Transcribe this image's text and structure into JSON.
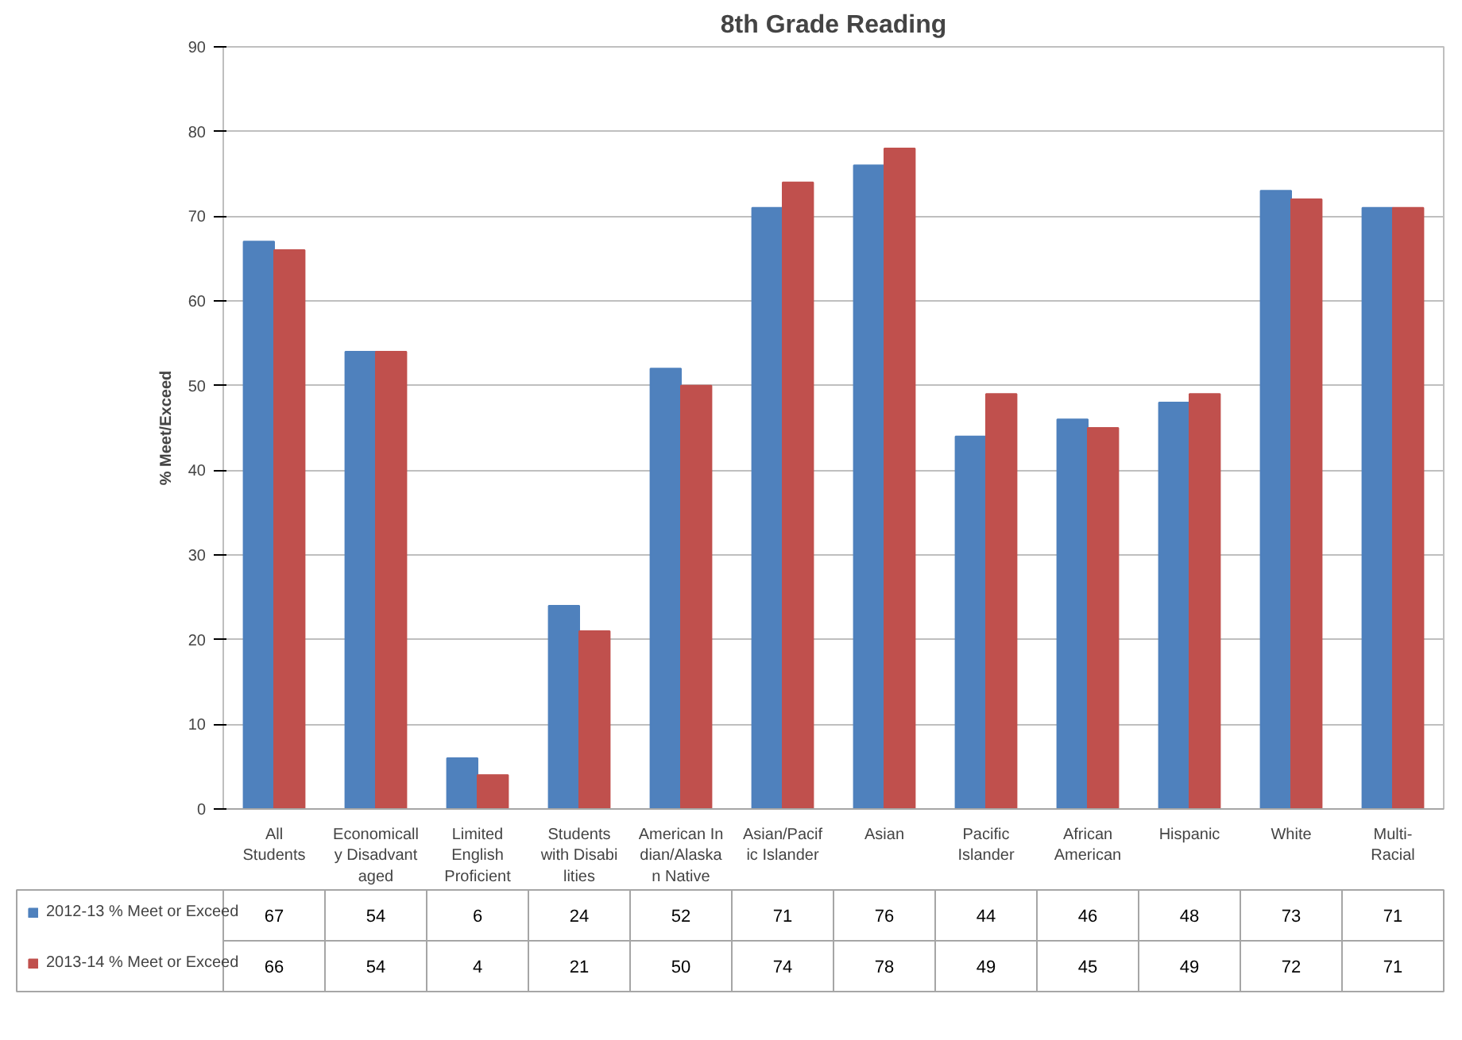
{
  "chart_data": {
    "type": "bar",
    "title": "8th Grade Reading",
    "ylabel": "% Meet/Exceed",
    "categories": [
      "All Students",
      "Economically Disadvantaged",
      "Limited English Proficient",
      "Students with Disabilities",
      "American Indian/Alaskan Native",
      "Asian/Pacific Islander",
      "Asian",
      "Pacific Islander",
      "African American",
      "Hispanic",
      "White",
      "Multi-Racial"
    ],
    "series": [
      {
        "name": "2012-13 % Meet or Exceed",
        "color": "#4f81bd",
        "values": [
          67,
          54,
          6,
          24,
          52,
          71,
          76,
          44,
          46,
          48,
          73,
          71
        ]
      },
      {
        "name": "2013-14 % Meet or Exceed",
        "color": "#c0504d",
        "values": [
          66,
          54,
          4,
          21,
          50,
          74,
          78,
          49,
          45,
          49,
          72,
          71
        ]
      }
    ],
    "ylim": [
      0,
      90
    ],
    "yticks": [
      0,
      10,
      20,
      30,
      40,
      50,
      60,
      70,
      80,
      90
    ],
    "grid": "y",
    "data_labels": true,
    "legend": "bottom left"
  }
}
